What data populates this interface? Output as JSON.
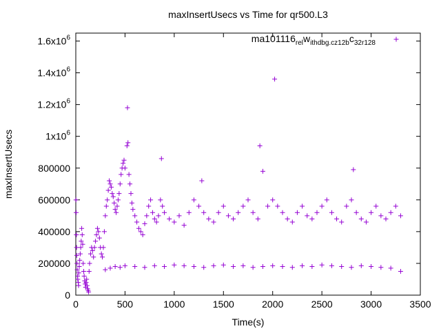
{
  "chart_data": {
    "type": "scatter",
    "title": "maxInsertUsecs vs Time for qr500.L3",
    "xlabel": "Time(s)",
    "ylabel": "maxInsertUsecs",
    "xlim": [
      0,
      3500
    ],
    "ylim": [
      0,
      1650000
    ],
    "grid": false,
    "legend_position": "top-right",
    "x_ticks": [
      {
        "value": 0,
        "label": "0"
      },
      {
        "value": 500,
        "label": "500"
      },
      {
        "value": 1000,
        "label": "1000"
      },
      {
        "value": 1500,
        "label": "1500"
      },
      {
        "value": 2000,
        "label": "2000"
      },
      {
        "value": 2500,
        "label": "2500"
      },
      {
        "value": 3000,
        "label": "3000"
      },
      {
        "value": 3500,
        "label": "3500"
      }
    ],
    "y_ticks": [
      {
        "value": 0,
        "label": "0",
        "sup": ""
      },
      {
        "value": 200000,
        "label": "200000",
        "sup": ""
      },
      {
        "value": 400000,
        "label": "400000",
        "sup": ""
      },
      {
        "value": 600000,
        "label": "600000",
        "sup": ""
      },
      {
        "value": 800000,
        "label": "800000",
        "sup": ""
      },
      {
        "value": 1000000,
        "label": "1x10",
        "sup": "6"
      },
      {
        "value": 1200000,
        "label": "1.2x10",
        "sup": "6"
      },
      {
        "value": 1400000,
        "label": "1.4x10",
        "sup": "6"
      },
      {
        "value": 1600000,
        "label": "1.6x10",
        "sup": "6"
      }
    ],
    "series": [
      {
        "name": "ma101116_rel_withdbg.cz12b_c32r128",
        "legend_parts": [
          {
            "text": "ma101116",
            "sub": false
          },
          {
            "text": "rel",
            "sub": true
          },
          {
            "text": "w",
            "sub": false
          },
          {
            "text": "ithdbg.cz12b",
            "sub": true
          },
          {
            "text": "c",
            "sub": false
          },
          {
            "text": "32r128",
            "sub": true
          }
        ],
        "color": "#9400d3",
        "marker": "plus",
        "points": [
          [
            2,
            600000
          ],
          [
            4,
            520000
          ],
          [
            6,
            380000
          ],
          [
            8,
            300000
          ],
          [
            10,
            250000
          ],
          [
            12,
            200000
          ],
          [
            15,
            160000
          ],
          [
            18,
            120000
          ],
          [
            20,
            100000
          ],
          [
            25,
            80000
          ],
          [
            28,
            60000
          ],
          [
            30,
            140000
          ],
          [
            35,
            180000
          ],
          [
            40,
            220000
          ],
          [
            45,
            260000
          ],
          [
            50,
            300000
          ],
          [
            55,
            340000
          ],
          [
            60,
            420000
          ],
          [
            65,
            380000
          ],
          [
            70,
            320000
          ],
          [
            75,
            200000
          ],
          [
            80,
            150000
          ],
          [
            85,
            120000
          ],
          [
            90,
            90000
          ],
          [
            95,
            70000
          ],
          [
            100,
            50000
          ],
          [
            105,
            80000
          ],
          [
            110,
            100000
          ],
          [
            115,
            60000
          ],
          [
            120,
            40000
          ],
          [
            125,
            30000
          ],
          [
            130,
            20000
          ],
          [
            135,
            150000
          ],
          [
            140,
            200000
          ],
          [
            150,
            260000
          ],
          [
            160,
            300000
          ],
          [
            170,
            280000
          ],
          [
            180,
            240000
          ],
          [
            190,
            300000
          ],
          [
            200,
            340000
          ],
          [
            210,
            380000
          ],
          [
            220,
            420000
          ],
          [
            230,
            400000
          ],
          [
            240,
            360000
          ],
          [
            250,
            300000
          ],
          [
            260,
            260000
          ],
          [
            270,
            240000
          ],
          [
            280,
            300000
          ],
          [
            290,
            400000
          ],
          [
            300,
            500000
          ],
          [
            310,
            560000
          ],
          [
            320,
            600000
          ],
          [
            330,
            660000
          ],
          [
            340,
            720000
          ],
          [
            350,
            700000
          ],
          [
            360,
            680000
          ],
          [
            370,
            640000
          ],
          [
            380,
            620000
          ],
          [
            390,
            580000
          ],
          [
            400,
            540000
          ],
          [
            410,
            520000
          ],
          [
            420,
            560000
          ],
          [
            430,
            600000
          ],
          [
            440,
            640000
          ],
          [
            450,
            700000
          ],
          [
            460,
            760000
          ],
          [
            470,
            800000
          ],
          [
            480,
            830000
          ],
          [
            490,
            850000
          ],
          [
            500,
            800000
          ],
          [
            520,
            940000
          ],
          [
            525,
            1180000
          ],
          [
            530,
            960000
          ],
          [
            540,
            760000
          ],
          [
            550,
            700000
          ],
          [
            560,
            640000
          ],
          [
            570,
            580000
          ],
          [
            580,
            540000
          ],
          [
            600,
            500000
          ],
          [
            620,
            460000
          ],
          [
            640,
            420000
          ],
          [
            660,
            400000
          ],
          [
            680,
            380000
          ],
          [
            700,
            450000
          ],
          [
            720,
            500000
          ],
          [
            740,
            560000
          ],
          [
            760,
            600000
          ],
          [
            780,
            520000
          ],
          [
            800,
            480000
          ],
          [
            820,
            460000
          ],
          [
            840,
            500000
          ],
          [
            860,
            600000
          ],
          [
            870,
            860000
          ],
          [
            880,
            560000
          ],
          [
            900,
            520000
          ],
          [
            950,
            480000
          ],
          [
            1000,
            460000
          ],
          [
            1050,
            500000
          ],
          [
            1100,
            440000
          ],
          [
            1150,
            520000
          ],
          [
            1200,
            600000
          ],
          [
            1250,
            560000
          ],
          [
            1280,
            720000
          ],
          [
            1300,
            520000
          ],
          [
            1350,
            480000
          ],
          [
            1400,
            460000
          ],
          [
            1450,
            520000
          ],
          [
            1500,
            560000
          ],
          [
            1550,
            500000
          ],
          [
            1600,
            480000
          ],
          [
            1650,
            520000
          ],
          [
            1700,
            560000
          ],
          [
            1750,
            600000
          ],
          [
            1800,
            520000
          ],
          [
            1850,
            480000
          ],
          [
            1870,
            940000
          ],
          [
            1900,
            780000
          ],
          [
            1950,
            560000
          ],
          [
            2000,
            600000
          ],
          [
            2020,
            1360000
          ],
          [
            2050,
            560000
          ],
          [
            2100,
            520000
          ],
          [
            2150,
            480000
          ],
          [
            2200,
            460000
          ],
          [
            2250,
            520000
          ],
          [
            2300,
            560000
          ],
          [
            2350,
            500000
          ],
          [
            2400,
            480000
          ],
          [
            2450,
            520000
          ],
          [
            2500,
            560000
          ],
          [
            2550,
            600000
          ],
          [
            2600,
            520000
          ],
          [
            2650,
            480000
          ],
          [
            2700,
            460000
          ],
          [
            2750,
            560000
          ],
          [
            2800,
            600000
          ],
          [
            2820,
            790000
          ],
          [
            2850,
            520000
          ],
          [
            2900,
            480000
          ],
          [
            2950,
            460000
          ],
          [
            3000,
            520000
          ],
          [
            3050,
            560000
          ],
          [
            3100,
            500000
          ],
          [
            3150,
            480000
          ],
          [
            3200,
            520000
          ],
          [
            3250,
            560000
          ],
          [
            3300,
            500000
          ],
          [
            300,
            160000
          ],
          [
            350,
            170000
          ],
          [
            400,
            180000
          ],
          [
            450,
            175000
          ],
          [
            500,
            185000
          ],
          [
            600,
            180000
          ],
          [
            700,
            175000
          ],
          [
            800,
            185000
          ],
          [
            900,
            180000
          ],
          [
            1000,
            190000
          ],
          [
            1100,
            185000
          ],
          [
            1200,
            180000
          ],
          [
            1300,
            175000
          ],
          [
            1400,
            185000
          ],
          [
            1500,
            190000
          ],
          [
            1600,
            180000
          ],
          [
            1700,
            185000
          ],
          [
            1800,
            175000
          ],
          [
            1900,
            180000
          ],
          [
            2000,
            185000
          ],
          [
            2100,
            180000
          ],
          [
            2200,
            175000
          ],
          [
            2300,
            185000
          ],
          [
            2400,
            180000
          ],
          [
            2500,
            190000
          ],
          [
            2600,
            185000
          ],
          [
            2700,
            180000
          ],
          [
            2800,
            175000
          ],
          [
            2900,
            185000
          ],
          [
            3000,
            180000
          ],
          [
            3100,
            175000
          ],
          [
            3200,
            170000
          ],
          [
            3300,
            150000
          ]
        ]
      }
    ]
  }
}
